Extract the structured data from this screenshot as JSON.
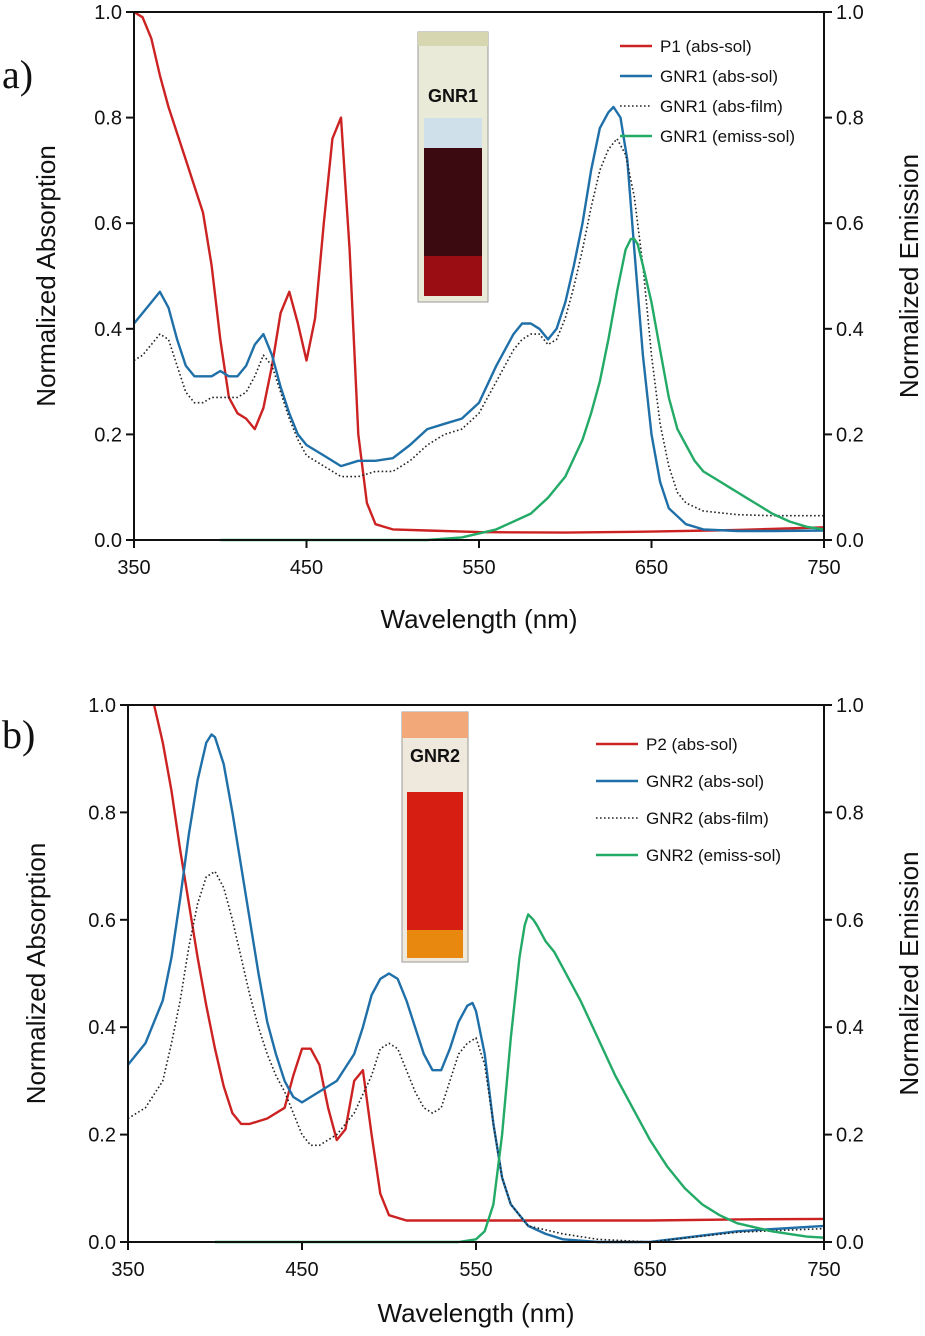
{
  "chart_data": [
    {
      "type": "line",
      "panel_label": "a)",
      "xlabel": "Wavelength (nm)",
      "ylabel": "Normalized Absorption",
      "y2label": "Normalized Emission",
      "xlim": [
        350,
        750
      ],
      "ylim": [
        0,
        1.0
      ],
      "y2lim": [
        0,
        1.0
      ],
      "xticks": [
        "350",
        "450",
        "550",
        "650",
        "750"
      ],
      "yticks": [
        "0.0",
        "0.2",
        "0.4",
        "0.6",
        "0.8",
        "1.0"
      ],
      "grid": false,
      "legend_position": "top-right",
      "inset_label": "GNR1",
      "series": [
        {
          "name": "P1 (abs-sol)",
          "color": "#cc2222",
          "style": "solid",
          "x": [
            350,
            355,
            360,
            365,
            370,
            380,
            390,
            395,
            400,
            405,
            410,
            415,
            420,
            425,
            430,
            435,
            440,
            445,
            450,
            455,
            460,
            465,
            470,
            475,
            480,
            485,
            490,
            500,
            520,
            550,
            600,
            650,
            700,
            750
          ],
          "y": [
            1.0,
            0.99,
            0.95,
            0.88,
            0.82,
            0.72,
            0.62,
            0.52,
            0.38,
            0.27,
            0.24,
            0.23,
            0.21,
            0.25,
            0.33,
            0.43,
            0.47,
            0.41,
            0.34,
            0.42,
            0.6,
            0.76,
            0.8,
            0.55,
            0.2,
            0.07,
            0.03,
            0.02,
            0.018,
            0.015,
            0.014,
            0.016,
            0.019,
            0.024
          ]
        },
        {
          "name": "GNR1 (abs-sol)",
          "color": "#1f6fa8",
          "style": "solid",
          "x": [
            350,
            355,
            360,
            365,
            370,
            375,
            380,
            385,
            390,
            395,
            400,
            405,
            410,
            415,
            420,
            425,
            430,
            435,
            440,
            445,
            450,
            460,
            470,
            480,
            490,
            500,
            510,
            520,
            530,
            540,
            550,
            560,
            570,
            575,
            580,
            585,
            590,
            595,
            600,
            605,
            610,
            615,
            620,
            625,
            628,
            632,
            636,
            640,
            645,
            650,
            655,
            660,
            670,
            680,
            700,
            720,
            750
          ],
          "y": [
            0.41,
            0.43,
            0.45,
            0.47,
            0.44,
            0.38,
            0.33,
            0.31,
            0.31,
            0.31,
            0.32,
            0.31,
            0.31,
            0.33,
            0.37,
            0.39,
            0.35,
            0.29,
            0.24,
            0.2,
            0.18,
            0.16,
            0.14,
            0.15,
            0.15,
            0.155,
            0.18,
            0.21,
            0.22,
            0.23,
            0.26,
            0.33,
            0.39,
            0.41,
            0.41,
            0.4,
            0.38,
            0.4,
            0.45,
            0.52,
            0.6,
            0.7,
            0.78,
            0.81,
            0.82,
            0.8,
            0.72,
            0.55,
            0.35,
            0.2,
            0.11,
            0.06,
            0.03,
            0.02,
            0.017,
            0.017,
            0.018
          ]
        },
        {
          "name": "GNR1 (abs-film)",
          "color": "#222222",
          "style": "dotted",
          "x": [
            350,
            355,
            360,
            365,
            370,
            375,
            380,
            385,
            390,
            395,
            400,
            405,
            410,
            415,
            420,
            425,
            430,
            435,
            440,
            445,
            450,
            460,
            470,
            480,
            490,
            500,
            510,
            520,
            530,
            540,
            550,
            560,
            570,
            575,
            580,
            585,
            590,
            595,
            600,
            605,
            610,
            615,
            620,
            625,
            630,
            635,
            640,
            645,
            650,
            655,
            660,
            665,
            670,
            680,
            700,
            720,
            750
          ],
          "y": [
            0.34,
            0.35,
            0.37,
            0.39,
            0.38,
            0.33,
            0.28,
            0.26,
            0.26,
            0.27,
            0.27,
            0.27,
            0.27,
            0.28,
            0.31,
            0.35,
            0.33,
            0.28,
            0.23,
            0.19,
            0.16,
            0.14,
            0.12,
            0.12,
            0.13,
            0.13,
            0.15,
            0.18,
            0.2,
            0.21,
            0.24,
            0.3,
            0.36,
            0.38,
            0.39,
            0.39,
            0.37,
            0.38,
            0.42,
            0.48,
            0.55,
            0.63,
            0.7,
            0.74,
            0.76,
            0.73,
            0.65,
            0.52,
            0.35,
            0.22,
            0.14,
            0.09,
            0.07,
            0.055,
            0.048,
            0.046,
            0.046
          ]
        },
        {
          "name": "GNR1 (emiss-sol)",
          "color": "#22aa66",
          "style": "solid",
          "x": [
            400,
            450,
            500,
            520,
            540,
            560,
            580,
            590,
            600,
            610,
            615,
            620,
            625,
            630,
            635,
            638,
            640,
            642,
            645,
            650,
            655,
            660,
            665,
            670,
            675,
            680,
            685,
            690,
            695,
            700,
            705,
            710,
            720,
            730,
            740,
            750
          ],
          "y": [
            0.0,
            0.0,
            0.0,
            0.0,
            0.005,
            0.02,
            0.05,
            0.08,
            0.12,
            0.19,
            0.24,
            0.3,
            0.38,
            0.47,
            0.55,
            0.57,
            0.57,
            0.56,
            0.52,
            0.45,
            0.36,
            0.27,
            0.21,
            0.18,
            0.15,
            0.13,
            0.12,
            0.11,
            0.1,
            0.09,
            0.08,
            0.07,
            0.05,
            0.035,
            0.025,
            0.02
          ]
        }
      ]
    },
    {
      "type": "line",
      "panel_label": "b)",
      "xlabel": "Wavelength (nm)",
      "ylabel": "Normalized Absorption",
      "y2label": "Normalized Emission",
      "xlim": [
        350,
        750
      ],
      "ylim": [
        0,
        1.0
      ],
      "y2lim": [
        0,
        1.0
      ],
      "xticks": [
        "350",
        "450",
        "550",
        "650",
        "750"
      ],
      "yticks": [
        "0.0",
        "0.2",
        "0.4",
        "0.6",
        "0.8",
        "1.0"
      ],
      "grid": false,
      "legend_position": "top-right",
      "inset_label": "GNR2",
      "series": [
        {
          "name": "P2 (abs-sol)",
          "color": "#cc2222",
          "style": "solid",
          "x": [
            365,
            370,
            375,
            380,
            385,
            390,
            395,
            400,
            405,
            410,
            415,
            420,
            430,
            440,
            445,
            450,
            455,
            460,
            465,
            470,
            475,
            480,
            485,
            490,
            495,
            500,
            510,
            520,
            550,
            600,
            650,
            700,
            750
          ],
          "y": [
            1.0,
            0.93,
            0.84,
            0.73,
            0.63,
            0.53,
            0.44,
            0.36,
            0.29,
            0.24,
            0.22,
            0.22,
            0.23,
            0.25,
            0.31,
            0.36,
            0.36,
            0.33,
            0.25,
            0.19,
            0.21,
            0.3,
            0.32,
            0.2,
            0.09,
            0.05,
            0.04,
            0.04,
            0.04,
            0.04,
            0.04,
            0.042,
            0.043
          ]
        },
        {
          "name": "GNR2 (abs-sol)",
          "color": "#1f6fa8",
          "style": "solid",
          "x": [
            350,
            360,
            370,
            375,
            380,
            385,
            390,
            395,
            398,
            400,
            405,
            410,
            415,
            420,
            425,
            430,
            435,
            440,
            445,
            450,
            455,
            460,
            470,
            480,
            485,
            490,
            495,
            500,
            505,
            510,
            515,
            520,
            525,
            530,
            535,
            540,
            545,
            548,
            550,
            555,
            560,
            565,
            570,
            580,
            590,
            600,
            620,
            650,
            700,
            750
          ],
          "y": [
            0.33,
            0.37,
            0.45,
            0.53,
            0.64,
            0.76,
            0.86,
            0.93,
            0.945,
            0.94,
            0.89,
            0.8,
            0.7,
            0.6,
            0.5,
            0.41,
            0.35,
            0.3,
            0.27,
            0.26,
            0.27,
            0.28,
            0.3,
            0.35,
            0.4,
            0.46,
            0.49,
            0.5,
            0.49,
            0.45,
            0.4,
            0.35,
            0.32,
            0.32,
            0.36,
            0.41,
            0.44,
            0.445,
            0.43,
            0.35,
            0.22,
            0.12,
            0.07,
            0.03,
            0.015,
            0.005,
            0.0,
            0.0,
            0.02,
            0.03
          ]
        },
        {
          "name": "GNR2 (abs-film)",
          "color": "#222222",
          "style": "dotted",
          "x": [
            350,
            360,
            370,
            375,
            380,
            385,
            390,
            395,
            400,
            405,
            410,
            415,
            420,
            425,
            430,
            435,
            440,
            445,
            450,
            455,
            460,
            470,
            480,
            490,
            495,
            500,
            505,
            510,
            515,
            520,
            525,
            530,
            535,
            540,
            545,
            550,
            555,
            560,
            565,
            570,
            580,
            600,
            620,
            650,
            700,
            750
          ],
          "y": [
            0.23,
            0.25,
            0.3,
            0.37,
            0.45,
            0.55,
            0.63,
            0.68,
            0.69,
            0.66,
            0.6,
            0.53,
            0.46,
            0.4,
            0.35,
            0.31,
            0.28,
            0.24,
            0.2,
            0.18,
            0.18,
            0.2,
            0.24,
            0.31,
            0.36,
            0.37,
            0.36,
            0.32,
            0.28,
            0.25,
            0.24,
            0.25,
            0.3,
            0.35,
            0.37,
            0.38,
            0.33,
            0.22,
            0.12,
            0.07,
            0.03,
            0.015,
            0.005,
            0.0,
            0.018,
            0.025
          ]
        },
        {
          "name": "GNR2 (emiss-sol)",
          "color": "#22aa66",
          "style": "solid",
          "x": [
            400,
            500,
            540,
            550,
            555,
            560,
            565,
            570,
            575,
            578,
            580,
            583,
            585,
            590,
            595,
            600,
            610,
            620,
            630,
            640,
            650,
            660,
            670,
            680,
            690,
            700,
            720,
            740,
            750
          ],
          "y": [
            0.0,
            0.0,
            0.0,
            0.005,
            0.02,
            0.07,
            0.2,
            0.38,
            0.53,
            0.59,
            0.61,
            0.6,
            0.59,
            0.56,
            0.54,
            0.51,
            0.45,
            0.38,
            0.31,
            0.25,
            0.19,
            0.14,
            0.1,
            0.07,
            0.05,
            0.035,
            0.02,
            0.01,
            0.008
          ]
        }
      ]
    }
  ]
}
